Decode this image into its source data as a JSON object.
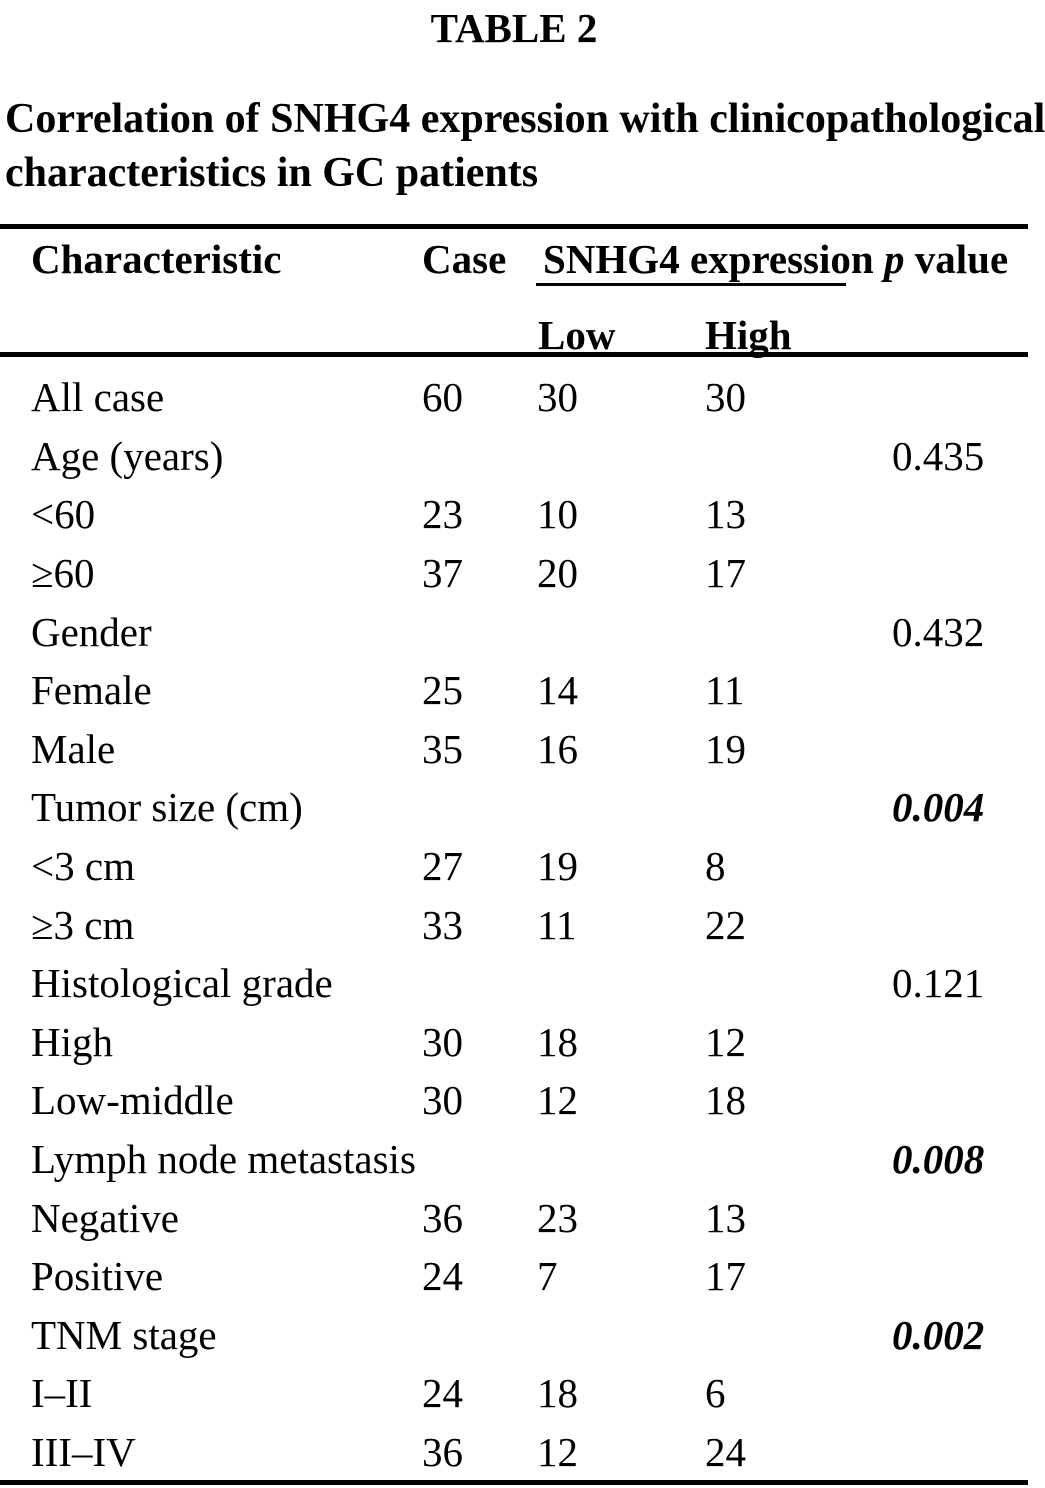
{
  "colors": {
    "text": "#000000",
    "background": "#ffffff",
    "rule": "#000000"
  },
  "page": {
    "title": "TABLE 2"
  },
  "caption": {
    "line1": "Correlation of SNHG4 expression with clinicopathological",
    "line2": "characteristics in GC patients"
  },
  "table": {
    "header": {
      "characteristic": "Characteristic",
      "case": "Case",
      "snhg4_group": "SNHG4 expression",
      "low": "Low",
      "high": "High",
      "p_italic": "p",
      "p_rest": " value"
    },
    "rows": [
      {
        "label": "All case",
        "case": "60",
        "low": "30",
        "high": "30",
        "p": "",
        "sig": false
      },
      {
        "label": "Age (years)",
        "case": "",
        "low": "",
        "high": "",
        "p": "0.435",
        "sig": false
      },
      {
        "label": "<60",
        "case": "23",
        "low": "10",
        "high": "13",
        "p": "",
        "sig": false
      },
      {
        "label": "≥60",
        "case": "37",
        "low": "20",
        "high": "17",
        "p": "",
        "sig": false
      },
      {
        "label": "Gender",
        "case": "",
        "low": "",
        "high": "",
        "p": "0.432",
        "sig": false
      },
      {
        "label": "Female",
        "case": "25",
        "low": "14",
        "high": "11",
        "p": "",
        "sig": false
      },
      {
        "label": "Male",
        "case": "35",
        "low": "16",
        "high": "19",
        "p": "",
        "sig": false
      },
      {
        "label": "Tumor size (cm)",
        "case": "",
        "low": "",
        "high": "",
        "p": "0.004",
        "sig": true
      },
      {
        "label": "<3 cm",
        "case": "27",
        "low": "19",
        "high": "8",
        "p": "",
        "sig": false
      },
      {
        "label": "≥3 cm",
        "case": "33",
        "low": "11",
        "high": "22",
        "p": "",
        "sig": false
      },
      {
        "label": "Histological grade",
        "case": "",
        "low": "",
        "high": "",
        "p": "0.121",
        "sig": false
      },
      {
        "label": "High",
        "case": "30",
        "low": "18",
        "high": "12",
        "p": "",
        "sig": false
      },
      {
        "label": "Low-middle",
        "case": "30",
        "low": "12",
        "high": "18",
        "p": "",
        "sig": false
      },
      {
        "label": "Lymph node metastasis",
        "case": "",
        "low": "",
        "high": "",
        "p": "0.008",
        "sig": true
      },
      {
        "label": "Negative",
        "case": "36",
        "low": "23",
        "high": "13",
        "p": "",
        "sig": false
      },
      {
        "label": "Positive",
        "case": "24",
        "low": "7",
        "high": "17",
        "p": "",
        "sig": false
      },
      {
        "label": "TNM stage",
        "case": "",
        "low": "",
        "high": "",
        "p": "0.002",
        "sig": true
      },
      {
        "label": "I–II",
        "case": "24",
        "low": "18",
        "high": "6",
        "p": "",
        "sig": false
      },
      {
        "label": "III–IV",
        "case": "36",
        "low": "12",
        "high": "24",
        "p": "",
        "sig": false
      }
    ]
  }
}
